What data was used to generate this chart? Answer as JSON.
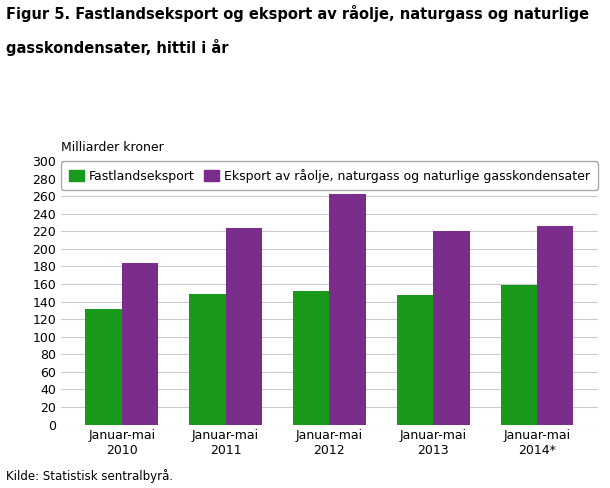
{
  "title_line1": "Figur 5. Fastlandseksport og eksport av råolje, naturgass og naturlige",
  "title_line2": "gasskondensater, hittil i år",
  "ylabel_text": "Milliarder kroner",
  "source": "Kilde: Statistisk sentralbyrå.",
  "categories": [
    "Januar-mai\n2010",
    "Januar-mai\n2011",
    "Januar-mai\n2012",
    "Januar-mai\n2013",
    "Januar-mai\n2014*"
  ],
  "fastland_values": [
    132,
    149,
    152,
    148,
    159
  ],
  "eksport_values": [
    184,
    224,
    263,
    220,
    226
  ],
  "fastland_color": "#1a9a1a",
  "eksport_color": "#7b2d8b",
  "legend_fastland": "Fastlandseksport",
  "legend_eksport": "Eksport av råolje, naturgass og naturlige gasskondensater",
  "ylim": [
    0,
    300
  ],
  "yticks": [
    0,
    20,
    40,
    60,
    80,
    100,
    120,
    140,
    160,
    180,
    200,
    220,
    240,
    260,
    280,
    300
  ],
  "bar_width": 0.35,
  "grid_color": "#cccccc",
  "background_color": "#ffffff",
  "title_fontsize": 10.5,
  "axis_fontsize": 9,
  "legend_fontsize": 9,
  "source_fontsize": 8.5,
  "ylabel_fontsize": 9
}
